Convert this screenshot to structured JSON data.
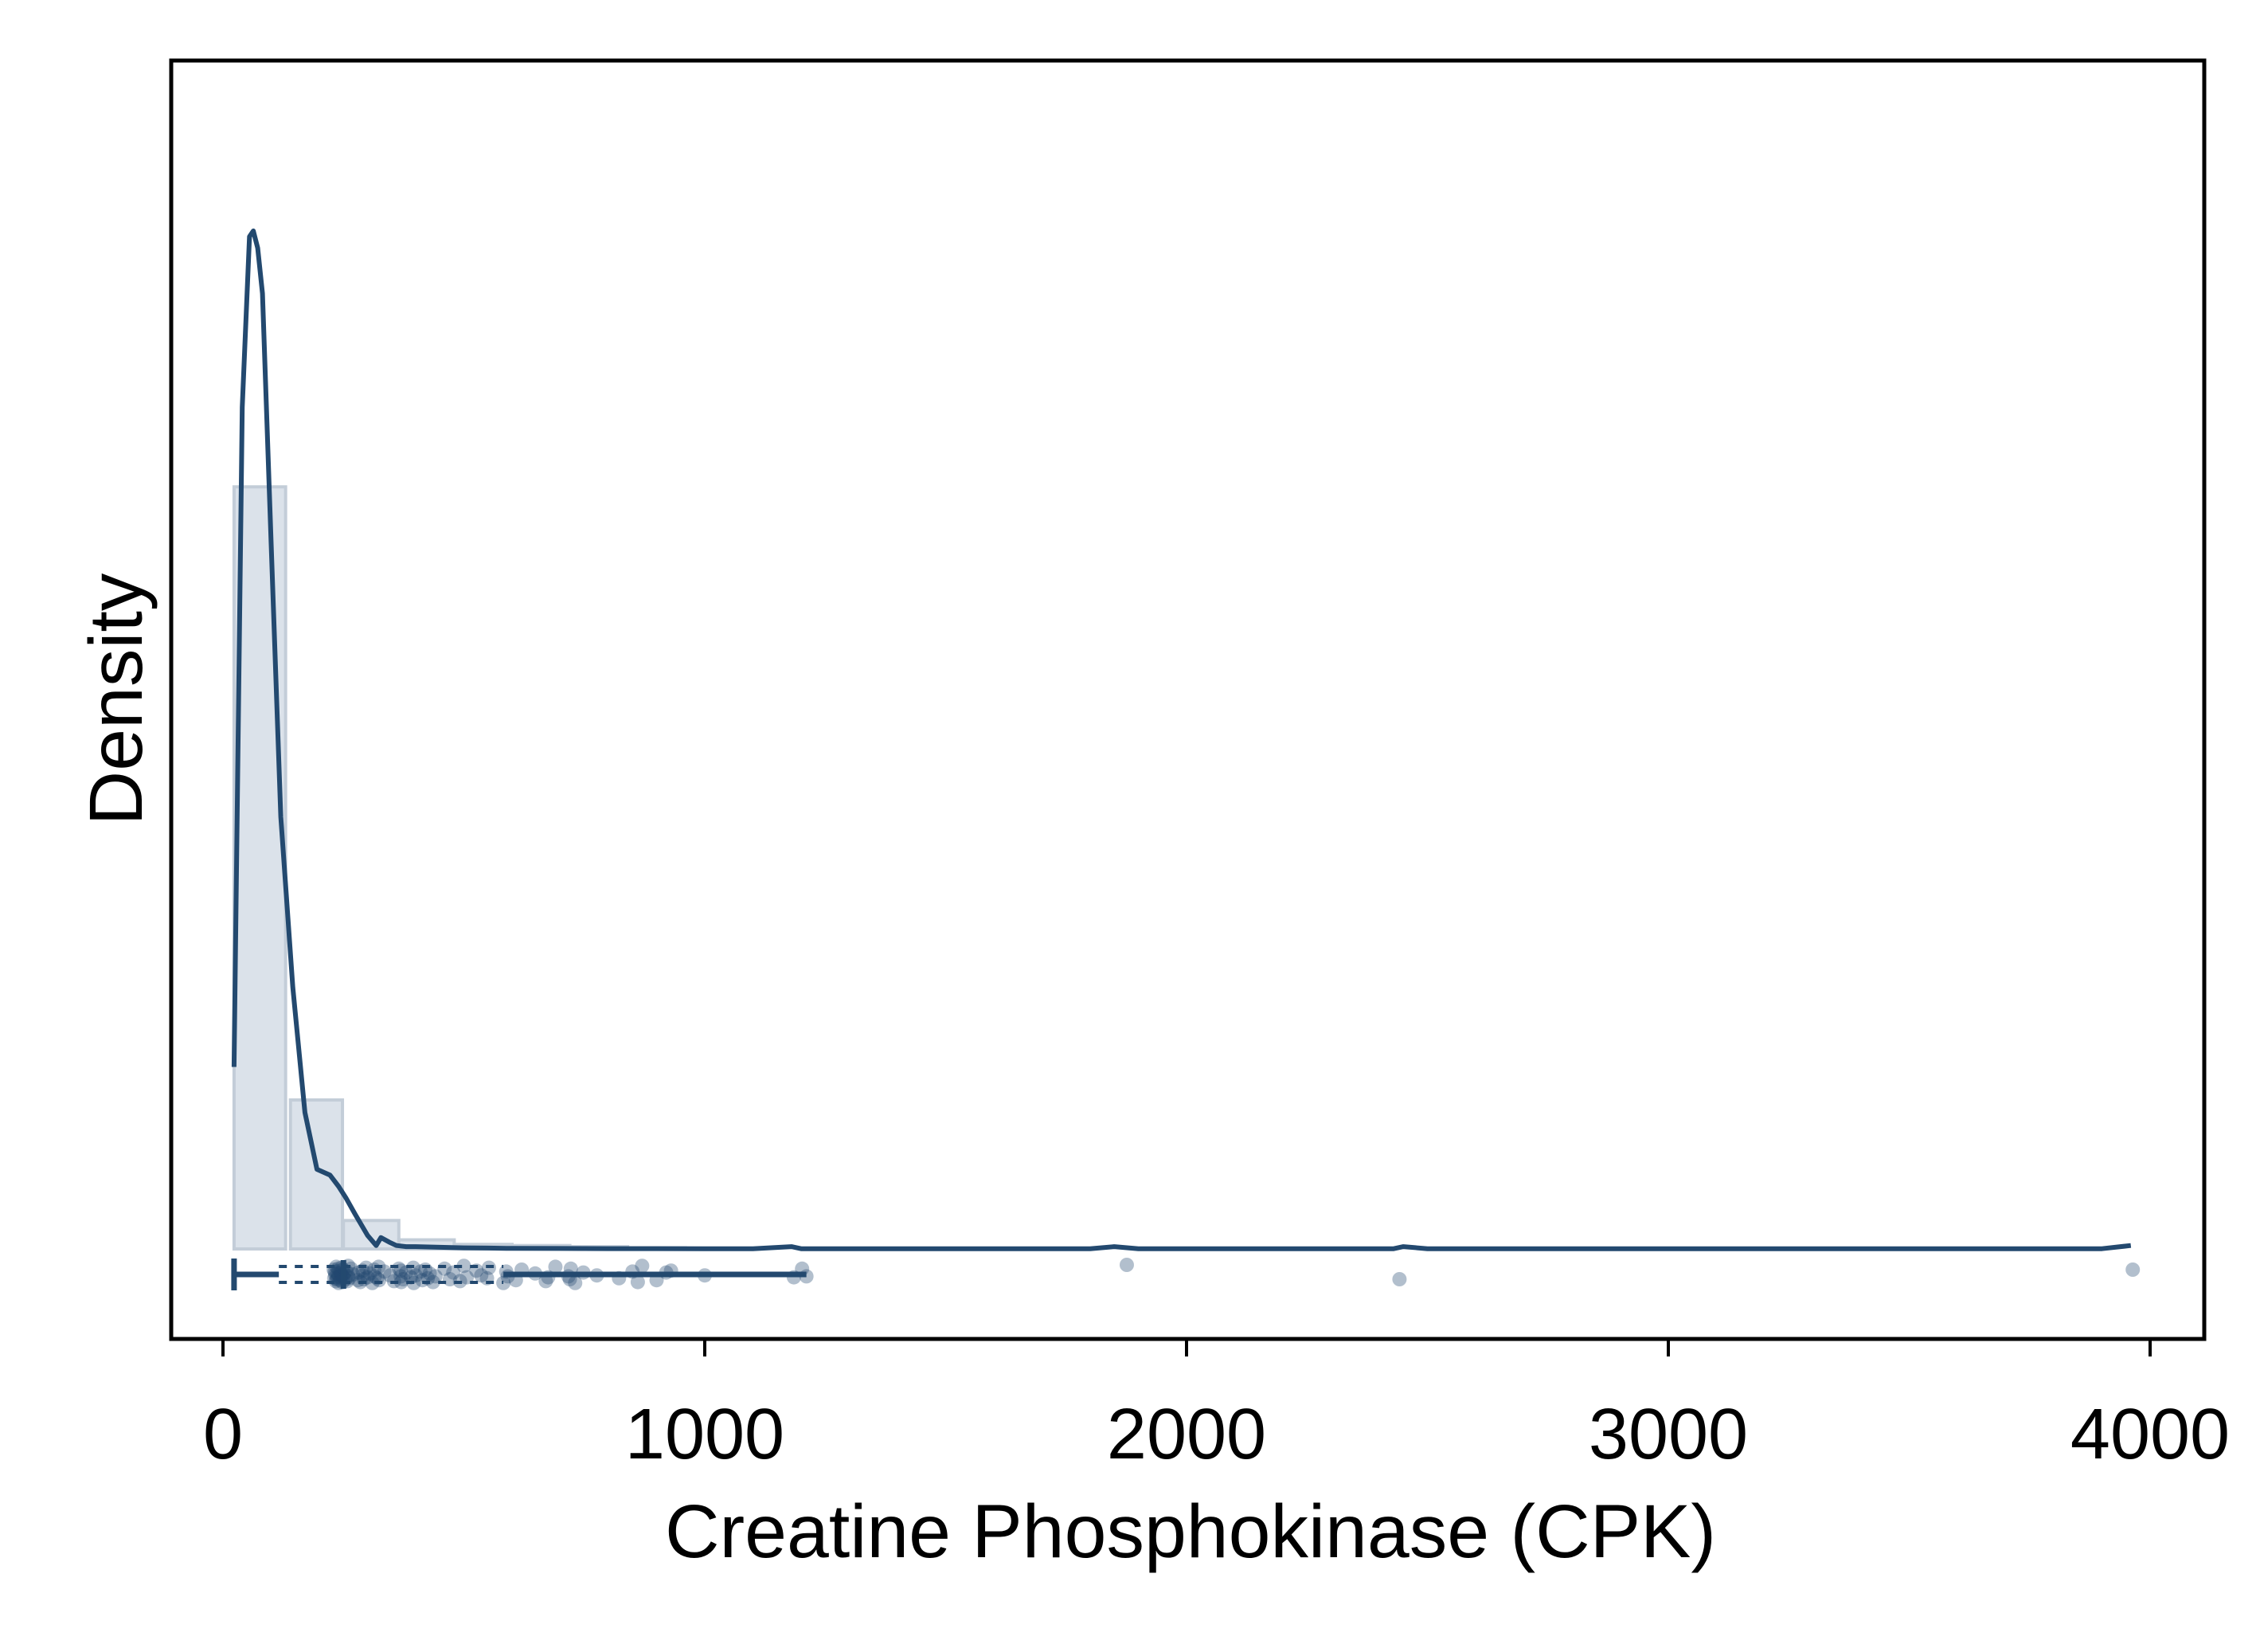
{
  "chart_data": {
    "type": "histogram",
    "xlabel": "Creatine Phosphokinase (CPK)",
    "ylabel": "Density",
    "xlim": [
      -100,
      4100
    ],
    "ylim": [
      0,
      1
    ],
    "y_axis_ticks_shown": false,
    "grid": false,
    "legend": "none",
    "x_ticks": [
      {
        "value": 0,
        "label": "0"
      },
      {
        "value": 1000,
        "label": "1000"
      },
      {
        "value": 2000,
        "label": "2000"
      },
      {
        "value": 3000,
        "label": "3000"
      },
      {
        "value": 4000,
        "label": "4000"
      }
    ],
    "histogram": {
      "bins": [
        {
          "x0": 23,
          "x1": 130,
          "density": 0.67
        },
        {
          "x0": 140,
          "x1": 248,
          "density": 0.131
        },
        {
          "x0": 250,
          "x1": 365,
          "density": 0.025
        },
        {
          "x0": 365,
          "x1": 480,
          "density": 0.008
        },
        {
          "x0": 480,
          "x1": 600,
          "density": 0.004
        },
        {
          "x0": 600,
          "x1": 720,
          "density": 0.003
        },
        {
          "x0": 720,
          "x1": 840,
          "density": 0.002
        },
        {
          "x0": 840,
          "x1": 960,
          "density": 0.001
        }
      ]
    },
    "density_curve": {
      "x": [
        23,
        40,
        55,
        63,
        72,
        82,
        100,
        120,
        145,
        170,
        195,
        222,
        240,
        255,
        275,
        300,
        318,
        328,
        345,
        360,
        380,
        400,
        450,
        500,
        550,
        600,
        700,
        800,
        900,
        1000,
        1100,
        1180,
        1200,
        1300,
        1500,
        1800,
        1850,
        1900,
        2200,
        2430,
        2450,
        2500,
        3000,
        3500,
        3900,
        3960
      ],
      "y": [
        0.16,
        0.74,
        0.89,
        0.895,
        0.88,
        0.84,
        0.62,
        0.38,
        0.23,
        0.12,
        0.07,
        0.065,
        0.055,
        0.045,
        0.03,
        0.012,
        0.003,
        0.01,
        0.006,
        0.003,
        0.002,
        0.002,
        0.0015,
        0.001,
        0.0008,
        0.0005,
        0.0004,
        0.0003,
        0.0003,
        0.0002,
        0.0002,
        0.002,
        0.0002,
        0.0002,
        0.0002,
        0.0002,
        0.002,
        0.0002,
        0.0002,
        0.0002,
        0.002,
        0.0002,
        0.0002,
        0.0002,
        0.0002,
        0.003
      ]
    },
    "boxplot": {
      "min": 23,
      "q1": 116,
      "median": 250,
      "q3": 582,
      "whisker_high": 1211
    },
    "rug_points": {
      "x": [
        3964,
        2442,
        1876,
        1211,
        1202,
        1185,
        1000,
        930,
        920,
        900,
        870,
        861,
        850,
        822,
        776,
        748,
        731,
        722,
        717,
        720,
        690,
        675,
        670,
        648,
        620,
        608,
        591,
        588,
        582,
        552,
        548,
        536,
        526,
        506,
        500,
        492,
        478,
        471,
        460,
        441,
        436,
        429,
        425,
        420,
        414,
        410,
        400,
        396,
        395,
        390,
        380,
        374,
        370,
        369,
        369,
        365,
        355,
        347,
        335,
        324,
        323,
        320,
        315,
        314,
        310,
        305,
        300,
        297,
        292,
        291,
        290,
        285,
        281,
        280,
        270,
        266,
        262,
        260,
        260,
        258,
        256,
        254,
        252,
        250,
        249,
        248,
        247,
        246,
        245,
        244,
        243,
        242,
        241,
        240,
        239,
        238,
        237,
        236,
        235,
        234,
        233,
        232,
        231,
        230
      ],
      "jitter": [
        -0.5,
        0.5,
        -1,
        0.2,
        -0.6,
        0.3,
        0.1,
        -0.4,
        -0.2,
        0.6,
        -0.9,
        0.8,
        -0.3,
        0.4,
        0.1,
        -0.2,
        0.9,
        -0.6,
        0.2,
        0.5,
        -0.8,
        0.3,
        0.7,
        -0.1,
        -0.5,
        0.6,
        0.2,
        -0.3,
        0.9,
        -0.7,
        0.4,
        0.1,
        -0.4,
        0.3,
        -0.9,
        0.7,
        -0.2,
        0.5,
        -0.6,
        0.2,
        0.8,
        -0.1,
        0.4,
        -0.5,
        0.6,
        -0.3,
        0.1,
        0.9,
        -0.7,
        0.3,
        -0.2,
        0.5,
        0.8,
        -0.4,
        0.2,
        -0.6,
        0.7,
        0.1,
        -0.3,
        0.6,
        -0.8,
        0.4,
        0.2,
        -0.5,
        0.9,
        -0.1,
        0.3,
        -0.7,
        0.5,
        0.1,
        -0.4,
        0.8,
        -0.2,
        0.6,
        0.0,
        -0.6,
        0.4,
        -0.9,
        0.2,
        0.7,
        -0.3,
        0.5,
        -0.1,
        0.3,
        -0.5,
        0.8,
        0.1,
        -0.7,
        0.4,
        -0.2,
        0.6,
        -0.4,
        0.2,
        0.9,
        -0.6,
        0.3,
        -0.1,
        0.5,
        -0.8,
        0.7,
        0.0,
        -0.3,
        0.4,
        -0.5
      ]
    },
    "colors": {
      "histogram_fill": "#dbe2ea",
      "histogram_stroke": "#c3cdd8",
      "curve": "#23496f",
      "box": "#23496f",
      "rug": "#23496f",
      "axis": "#000000"
    }
  }
}
